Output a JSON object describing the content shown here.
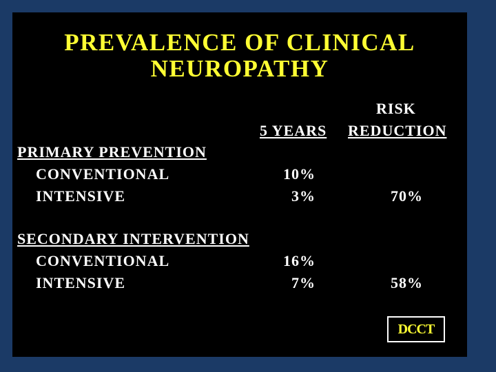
{
  "title_lines": [
    "PREVALENCE OF CLINICAL",
    "NEUROPATHY"
  ],
  "headers": {
    "five_years": "5 YEARS",
    "risk_reduction": [
      "RISK",
      "REDUCTION"
    ]
  },
  "sections": [
    {
      "label": "PRIMARY PREVENTION",
      "rows": [
        {
          "label": "CONVENTIONAL",
          "five_years": "10%"
        },
        {
          "label": "INTENSIVE",
          "five_years": "3%",
          "risk_reduction": "70%"
        }
      ]
    },
    {
      "label": "SECONDARY INTERVENTION",
      "rows": [
        {
          "label": "CONVENTIONAL",
          "five_years": "16%"
        },
        {
          "label": "INTENSIVE",
          "five_years": "7%",
          "risk_reduction": "58%"
        }
      ]
    }
  ],
  "source": "DCCT"
}
